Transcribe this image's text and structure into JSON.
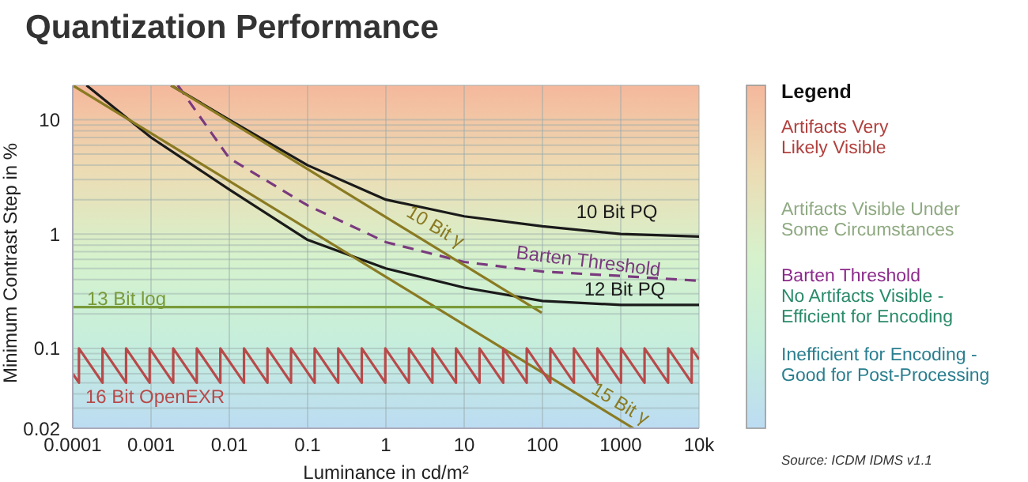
{
  "chart_data": {
    "type": "line",
    "title": "Quantization Performance",
    "xlabel": "Luminance in cd/m²",
    "ylabel": "Minimum Contrast Step in %",
    "legend_title": "Legend",
    "log": "xy",
    "grid": true,
    "xlim": [
      0.0001,
      10000
    ],
    "ylim": [
      0.02,
      20
    ],
    "xticks": [
      0.0001,
      0.001,
      0.01,
      0.1,
      1,
      10,
      100,
      1000,
      {
        "value": 10000,
        "label": "10k"
      }
    ],
    "yticks": [
      0.02,
      {
        "value": 0.03,
        "label": null
      },
      {
        "value": 0.04,
        "label": null
      },
      {
        "value": 0.05,
        "label": null
      },
      {
        "value": 0.06,
        "label": null
      },
      {
        "value": 0.07,
        "label": null
      },
      {
        "value": 0.08,
        "label": null
      },
      {
        "value": 0.09,
        "label": null
      },
      0.1,
      {
        "value": 0.2,
        "label": null
      },
      {
        "value": 0.3,
        "label": null
      },
      {
        "value": 0.4,
        "label": null
      },
      {
        "value": 0.5,
        "label": null
      },
      {
        "value": 0.6,
        "label": null
      },
      {
        "value": 0.7,
        "label": null
      },
      {
        "value": 0.8,
        "label": null
      },
      {
        "value": 0.9,
        "label": null
      },
      1,
      {
        "value": 2,
        "label": null
      },
      {
        "value": 3,
        "label": null
      },
      {
        "value": 4,
        "label": null
      },
      {
        "value": 5,
        "label": null
      },
      {
        "value": 6,
        "label": null
      },
      {
        "value": 7,
        "label": null
      },
      {
        "value": 8,
        "label": null
      },
      {
        "value": 9,
        "label": null
      },
      10
    ],
    "series": [
      {
        "name": "10 Bit PQ",
        "color": "#1a1a1a",
        "x": [
          0.0018,
          0.01,
          0.1,
          1,
          10,
          100,
          1000,
          10000
        ],
        "values": [
          20,
          10,
          4,
          2,
          1.43,
          1.17,
          1,
          0.95
        ]
      },
      {
        "name": "12 Bit PQ",
        "color": "#1a1a1a",
        "x": [
          0.00015,
          0.001,
          0.01,
          0.1,
          1,
          10,
          100,
          1000,
          10000
        ],
        "values": [
          20,
          7,
          2.45,
          0.89,
          0.5,
          0.34,
          0.26,
          0.24,
          0.24
        ]
      },
      {
        "name": "Barten Threshold",
        "color": "#7a3a7e",
        "line_style": "dashed",
        "x": [
          0.0022,
          0.01,
          0.1,
          1,
          10,
          100,
          1000,
          10000
        ],
        "values": [
          20,
          4.6,
          1.78,
          0.85,
          0.57,
          0.47,
          0.43,
          0.39
        ]
      },
      {
        "name": "10 Bit γ",
        "color": "#8a7a22",
        "x": [
          0.0018,
          98
        ],
        "values": [
          20,
          0.205
        ]
      },
      {
        "name": "15 Bit γ",
        "color": "#8a7a22",
        "x": [
          0.0001,
          1450
        ],
        "values": [
          20,
          0.02
        ]
      },
      {
        "name": "13 Bit log",
        "color": "#7a9a3a",
        "x": [
          0.0001,
          100
        ],
        "values": [
          0.23,
          0.23
        ]
      },
      {
        "name": "16 Bit OpenEXR",
        "color": "#b84a4a",
        "x": [
          0.0001,
          0.00012,
          0.00012,
          0.00024,
          0.00024,
          0.00048,
          0.00048,
          0.00096,
          0.00096,
          0.00192,
          0.00192,
          0.00384,
          0.00384,
          0.00768,
          0.00768,
          0.0154,
          0.0154,
          0.0307,
          0.0307,
          0.0614,
          0.0614,
          0.123,
          0.123,
          0.246,
          0.246,
          0.492,
          0.492,
          0.983,
          0.983,
          1.97,
          1.97,
          3.93,
          3.93,
          7.86,
          7.86,
          15.7,
          15.7,
          31.5,
          31.5,
          62.9,
          62.9,
          126,
          126,
          252,
          252,
          503,
          503,
          1007,
          1007,
          2013,
          2013,
          4027,
          4027,
          8053,
          8053,
          10000
        ],
        "values": [
          0.06,
          0.05,
          0.1,
          0.05,
          0.1,
          0.05,
          0.1,
          0.05,
          0.1,
          0.05,
          0.1,
          0.05,
          0.1,
          0.05,
          0.1,
          0.05,
          0.1,
          0.05,
          0.1,
          0.05,
          0.1,
          0.05,
          0.1,
          0.05,
          0.1,
          0.05,
          0.1,
          0.05,
          0.1,
          0.05,
          0.1,
          0.05,
          0.1,
          0.05,
          0.1,
          0.05,
          0.1,
          0.05,
          0.1,
          0.05,
          0.1,
          0.05,
          0.1,
          0.05,
          0.1,
          0.05,
          0.1,
          0.05,
          0.1,
          0.05,
          0.1,
          0.05,
          0.1,
          0.05,
          0.1,
          0.08
        ]
      }
    ],
    "annotations": [
      "Artifacts Very\nLikely Visible",
      "Artifacts Visible Under\nSome Circumstances",
      "Barten Threshold",
      "No Artifacts Visible -\nEfficient for Encoding",
      "Inefficient for Encoding -\nGood for Post-Processing",
      "Source: ICDM IDMS v1.1"
    ]
  }
}
